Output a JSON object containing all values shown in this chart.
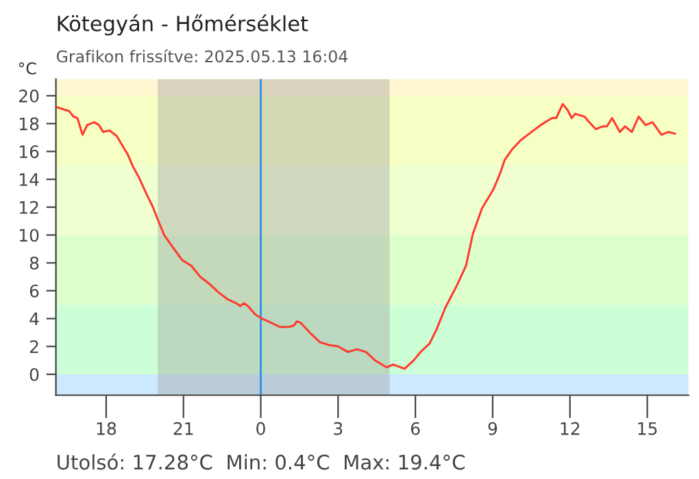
{
  "chart_data": {
    "type": "line",
    "title": "Kötegyán - Hőmérséklet",
    "subtitle": "Grafikon frissítve: 2025.05.13 16:04",
    "ylabel": "°C",
    "annotations": [
      "Utolsó: 17.28°C  Min: 0.4°C  Max: 19.4°C"
    ],
    "series": [
      {
        "color": "#ff3b30",
        "x": [
          "2025-05-12T16:03",
          "2025-05-12T16:23",
          "2025-05-12T16:34",
          "2025-05-12T16:44",
          "2025-05-12T16:53",
          "2025-05-12T17:05",
          "2025-05-12T17:16",
          "2025-05-12T17:32",
          "2025-05-12T17:43",
          "2025-05-12T17:53",
          "2025-05-12T18:08",
          "2025-05-12T18:25",
          "2025-05-12T18:40",
          "2025-05-12T18:50",
          "2025-05-12T19:01",
          "2025-05-12T19:17",
          "2025-05-12T19:33",
          "2025-05-12T19:49",
          "2025-05-12T19:59",
          "2025-05-12T20:15",
          "2025-05-12T20:31",
          "2025-05-12T20:57",
          "2025-05-12T21:18",
          "2025-05-12T21:39",
          "2025-05-12T22:00",
          "2025-05-12T22:21",
          "2025-05-12T22:42",
          "2025-05-12T23:03",
          "2025-05-12T23:12",
          "2025-05-12T23:21",
          "2025-05-12T23:30",
          "2025-05-12T23:47",
          "2025-05-13T00:03",
          "2025-05-13T00:24",
          "2025-05-13T00:45",
          "2025-05-13T01:06",
          "2025-05-13T01:17",
          "2025-05-13T01:24",
          "2025-05-13T01:33",
          "2025-05-13T01:57",
          "2025-05-13T02:18",
          "2025-05-13T02:39",
          "2025-05-13T03:00",
          "2025-05-13T03:23",
          "2025-05-13T03:44",
          "2025-05-13T04:05",
          "2025-05-13T04:26",
          "2025-05-13T04:53",
          "2025-05-13T05:08",
          "2025-05-13T05:35",
          "2025-05-13T05:56",
          "2025-05-13T06:12",
          "2025-05-13T06:33",
          "2025-05-13T06:49",
          "2025-05-13T07:10",
          "2025-05-13T07:37",
          "2025-05-13T07:58",
          "2025-05-13T08:14",
          "2025-05-13T08:35",
          "2025-05-13T09:02",
          "2025-05-13T09:17",
          "2025-05-13T09:28",
          "2025-05-13T09:44",
          "2025-05-13T10:05",
          "2025-05-13T10:26",
          "2025-05-13T10:52",
          "2025-05-13T11:18",
          "2025-05-13T11:28",
          "2025-05-13T11:43",
          "2025-05-13T11:54",
          "2025-05-13T12:04",
          "2025-05-13T12:12",
          "2025-05-13T12:34",
          "2025-05-13T12:42",
          "2025-05-13T13:00",
          "2025-05-13T13:16",
          "2025-05-13T13:26",
          "2025-05-13T13:38",
          "2025-05-13T13:56",
          "2025-05-13T14:08",
          "2025-05-13T14:24",
          "2025-05-13T14:40",
          "2025-05-13T14:56",
          "2025-05-13T15:12",
          "2025-05-13T15:33",
          "2025-05-13T15:49",
          "2025-05-13T16:04"
        ],
        "values": [
          19.2,
          19.0,
          18.9,
          18.5,
          18.4,
          17.2,
          17.9,
          18.1,
          17.9,
          17.4,
          17.5,
          17.1,
          16.3,
          15.8,
          15.0,
          14.1,
          13.0,
          12.0,
          11.2,
          10.0,
          9.3,
          8.2,
          7.8,
          7.0,
          6.5,
          5.9,
          5.4,
          5.1,
          4.9,
          5.1,
          4.9,
          4.3,
          4.0,
          3.7,
          3.4,
          3.4,
          3.5,
          3.8,
          3.7,
          2.9,
          2.3,
          2.1,
          2.0,
          1.6,
          1.8,
          1.6,
          1.0,
          0.5,
          0.7,
          0.4,
          1.0,
          1.6,
          2.2,
          3.2,
          4.8,
          6.4,
          7.8,
          10.1,
          11.9,
          13.3,
          14.4,
          15.4,
          16.1,
          16.8,
          17.3,
          17.9,
          18.4,
          18.4,
          19.4,
          19.0,
          18.4,
          18.7,
          18.5,
          18.2,
          17.6,
          17.8,
          17.8,
          18.4,
          17.4,
          17.8,
          17.4,
          18.5,
          17.9,
          18.1,
          17.2,
          17.4,
          17.28
        ]
      }
    ],
    "xlim": [
      "2025-05-12T16:03",
      "2025-05-13T16:36"
    ],
    "ylim": [
      -1.5,
      21.2
    ],
    "xticks": [
      {
        "value": "2025-05-12T18:00",
        "label": "18"
      },
      {
        "value": "2025-05-12T21:00",
        "label": "21"
      },
      {
        "value": "2025-05-13T00:00",
        "label": "0"
      },
      {
        "value": "2025-05-13T03:00",
        "label": "3"
      },
      {
        "value": "2025-05-13T06:00",
        "label": "6"
      },
      {
        "value": "2025-05-13T09:00",
        "label": "9"
      },
      {
        "value": "2025-05-13T12:00",
        "label": "12"
      },
      {
        "value": "2025-05-13T15:00",
        "label": "15"
      }
    ],
    "yticks": [
      0,
      2,
      4,
      6,
      8,
      10,
      12,
      14,
      16,
      18,
      20
    ],
    "bands": [
      {
        "axis": "y",
        "from": -1.5,
        "to": 0,
        "color": "#cce9ff"
      },
      {
        "axis": "y",
        "from": 0,
        "to": 5,
        "color": "#ccffd6"
      },
      {
        "axis": "y",
        "from": 5,
        "to": 10,
        "color": "#dcffcc"
      },
      {
        "axis": "y",
        "from": 10,
        "to": 15,
        "color": "#efffd0"
      },
      {
        "axis": "y",
        "from": 15,
        "to": 20,
        "color": "#f6ffc4"
      },
      {
        "axis": "y",
        "from": 20,
        "to": 21.2,
        "color": "#fff7d2"
      },
      {
        "axis": "x",
        "from": "2025-05-12T20:00",
        "to": "2025-05-13T05:00",
        "color": "#a0a0a0"
      }
    ],
    "ref_lines": [
      {
        "axis": "x",
        "value": "2025-05-13T00:00",
        "color": "#2a8fe0"
      }
    ],
    "grid": false,
    "legend": false,
    "marker": "none",
    "line_style": "solid"
  }
}
